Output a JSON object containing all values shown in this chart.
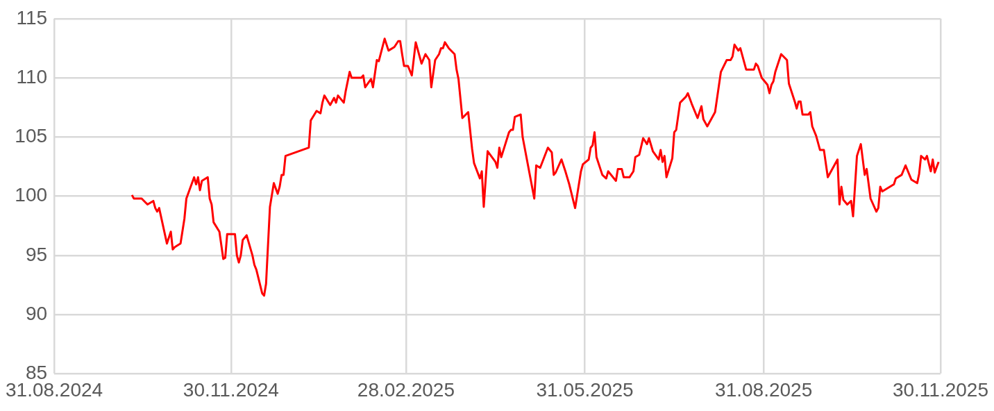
{
  "chart_data": {
    "type": "line",
    "x": [
      "2024-10-10",
      "2024-10-11",
      "2024-10-15",
      "2024-10-18",
      "2024-10-21",
      "2024-10-22",
      "2024-10-23",
      "2024-10-24",
      "2024-10-28",
      "2024-10-30",
      "2024-10-31",
      "2024-11-01",
      "2024-11-04",
      "2024-11-06",
      "2024-11-07",
      "2024-11-11",
      "2024-11-12",
      "2024-11-13",
      "2024-11-14",
      "2024-11-15",
      "2024-11-18",
      "2024-11-19",
      "2024-11-20",
      "2024-11-21",
      "2024-11-24",
      "2024-11-26",
      "2024-11-27",
      "2024-11-28",
      "2024-12-02",
      "2024-12-03",
      "2024-12-04",
      "2024-12-05",
      "2024-12-06",
      "2024-12-08",
      "2024-12-11",
      "2024-12-12",
      "2024-12-13",
      "2024-12-16",
      "2024-12-17",
      "2024-12-18",
      "2024-12-20",
      "2024-12-22",
      "2024-12-24",
      "2024-12-25",
      "2024-12-26",
      "2024-12-27",
      "2024-12-28",
      "2025-01-09",
      "2025-01-10",
      "2025-01-13",
      "2025-01-15",
      "2025-01-16",
      "2025-01-17",
      "2025-01-20",
      "2025-01-22",
      "2025-01-23",
      "2025-01-24",
      "2025-01-27",
      "2025-01-28",
      "2025-01-30",
      "2025-01-31",
      "2025-02-05",
      "2025-02-06",
      "2025-02-07",
      "2025-02-10",
      "2025-02-11",
      "2025-02-13",
      "2025-02-14",
      "2025-02-17",
      "2025-02-19",
      "2025-02-22",
      "2025-02-24",
      "2025-02-25",
      "2025-02-26",
      "2025-02-27",
      "2025-03-01",
      "2025-03-03",
      "2025-03-05",
      "2025-03-08",
      "2025-03-10",
      "2025-03-12",
      "2025-03-13",
      "2025-03-15",
      "2025-03-17",
      "2025-03-18",
      "2025-03-19",
      "2025-03-20",
      "2025-03-22",
      "2025-03-25",
      "2025-03-26",
      "2025-03-27",
      "2025-03-29",
      "2025-04-01",
      "2025-04-03",
      "2025-04-04",
      "2025-04-07",
      "2025-04-08",
      "2025-04-09",
      "2025-04-11",
      "2025-04-15",
      "2025-04-16",
      "2025-04-17",
      "2025-04-18",
      "2025-04-22",
      "2025-04-23",
      "2025-04-24",
      "2025-04-25",
      "2025-04-28",
      "2025-04-29",
      "2025-05-05",
      "2025-05-06",
      "2025-05-08",
      "2025-05-12",
      "2025-05-14",
      "2025-05-15",
      "2025-05-16",
      "2025-05-19",
      "2025-05-21",
      "2025-05-23",
      "2025-05-26",
      "2025-05-29",
      "2025-05-30",
      "2025-06-02",
      "2025-06-03",
      "2025-06-04",
      "2025-06-05",
      "2025-06-06",
      "2025-06-09",
      "2025-06-11",
      "2025-06-12",
      "2025-06-16",
      "2025-06-17",
      "2025-06-19",
      "2025-06-20",
      "2025-06-23",
      "2025-06-25",
      "2025-06-26",
      "2025-06-28",
      "2025-06-30",
      "2025-07-02",
      "2025-07-03",
      "2025-07-05",
      "2025-07-08",
      "2025-07-09",
      "2025-07-10",
      "2025-07-11",
      "2025-07-12",
      "2025-07-15",
      "2025-07-16",
      "2025-07-17",
      "2025-07-19",
      "2025-07-22",
      "2025-07-23",
      "2025-07-25",
      "2025-07-28",
      "2025-07-30",
      "2025-07-31",
      "2025-08-02",
      "2025-08-06",
      "2025-08-09",
      "2025-08-12",
      "2025-08-14",
      "2025-08-15",
      "2025-08-16",
      "2025-08-18",
      "2025-08-19",
      "2025-08-22",
      "2025-08-26",
      "2025-08-27",
      "2025-08-28",
      "2025-08-30",
      "2025-09-02",
      "2025-09-03",
      "2025-09-04",
      "2025-09-05",
      "2025-09-06",
      "2025-09-09",
      "2025-09-12",
      "2025-09-13",
      "2025-09-16",
      "2025-09-17",
      "2025-09-18",
      "2025-09-19",
      "2025-09-20",
      "2025-09-23",
      "2025-09-24",
      "2025-09-25",
      "2025-09-27",
      "2025-09-29",
      "2025-10-01",
      "2025-10-03",
      "2025-10-08",
      "2025-10-09",
      "2025-10-10",
      "2025-10-11",
      "2025-10-13",
      "2025-10-15",
      "2025-10-16",
      "2025-10-18",
      "2025-10-20",
      "2025-10-22",
      "2025-10-23",
      "2025-10-25",
      "2025-10-28",
      "2025-10-29",
      "2025-10-30",
      "2025-10-31",
      "2025-11-06",
      "2025-11-07",
      "2025-11-10",
      "2025-11-12",
      "2025-11-15",
      "2025-11-18",
      "2025-11-19",
      "2025-11-20",
      "2025-11-22",
      "2025-11-23",
      "2025-11-25",
      "2025-11-26",
      "2025-11-27",
      "2025-11-29"
    ],
    "series": [
      {
        "color": "#ff0000",
        "values": [
          100.1,
          99.8,
          99.8,
          99.3,
          99.6,
          99.0,
          98.7,
          99.0,
          96.0,
          97.0,
          95.5,
          95.7,
          96.0,
          98.1,
          99.8,
          101.6,
          101.0,
          101.6,
          100.5,
          101.3,
          101.6,
          99.8,
          99.3,
          97.8,
          97.0,
          94.7,
          94.8,
          96.8,
          96.8,
          95.0,
          94.4,
          95.0,
          96.3,
          96.7,
          95.0,
          94.2,
          93.8,
          91.8,
          91.6,
          92.6,
          99.1,
          101.1,
          100.2,
          100.8,
          101.8,
          101.8,
          103.4,
          104.1,
          106.4,
          107.2,
          107.0,
          107.9,
          108.5,
          107.7,
          108.3,
          107.9,
          108.5,
          107.9,
          108.9,
          110.5,
          110.0,
          110.0,
          110.2,
          109.2,
          109.9,
          109.2,
          111.5,
          111.4,
          113.3,
          112.3,
          112.6,
          113.1,
          113.1,
          112.0,
          111.0,
          111.0,
          110.2,
          113.0,
          111.2,
          112.0,
          111.5,
          109.2,
          111.5,
          112.0,
          112.5,
          112.5,
          113.0,
          112.5,
          112.0,
          110.7,
          109.9,
          106.6,
          107.1,
          104.0,
          102.8,
          101.5,
          102.1,
          99.1,
          103.8,
          102.9,
          102.4,
          104.1,
          103.3,
          105.4,
          105.6,
          105.6,
          106.7,
          106.9,
          105.0,
          99.8,
          102.6,
          102.4,
          104.1,
          103.7,
          101.8,
          102.0,
          103.1,
          102.1,
          101.0,
          99.0,
          102.1,
          102.7,
          103.1,
          104.1,
          104.3,
          105.4,
          103.3,
          101.8,
          101.5,
          102.1,
          101.3,
          102.3,
          102.3,
          101.6,
          101.6,
          102.1,
          103.3,
          103.5,
          104.9,
          104.4,
          104.9,
          103.8,
          103.1,
          103.9,
          102.9,
          103.4,
          101.6,
          103.2,
          105.4,
          105.6,
          107.9,
          108.4,
          108.7,
          107.8,
          106.6,
          107.6,
          106.5,
          105.9,
          107.1,
          110.5,
          111.5,
          111.5,
          111.8,
          112.8,
          112.3,
          112.5,
          110.7,
          110.7,
          111.2,
          111.0,
          110.0,
          109.4,
          108.7,
          109.4,
          109.7,
          110.5,
          112.0,
          111.5,
          109.5,
          108.0,
          107.4,
          108.0,
          108.0,
          106.9,
          106.9,
          107.1,
          105.9,
          105.1,
          103.9,
          103.9,
          101.6,
          103.1,
          99.3,
          100.8,
          99.7,
          99.3,
          99.6,
          98.3,
          103.4,
          104.4,
          101.8,
          102.3,
          99.8,
          98.7,
          99.0,
          100.8,
          100.4,
          101.0,
          101.5,
          101.8,
          102.6,
          101.4,
          101.1,
          101.9,
          103.4,
          103.1,
          103.4,
          102.1,
          103.1,
          102.0,
          102.9
        ]
      }
    ],
    "xlim": [
      "2024-08-31",
      "2025-11-30"
    ],
    "xticks": [
      {
        "value": "2024-08-31",
        "label": "31.08.2024"
      },
      {
        "value": "2024-11-30",
        "label": "30.11.2024"
      },
      {
        "value": "2025-02-28",
        "label": "28.02.2025"
      },
      {
        "value": "2025-05-31",
        "label": "31.05.2025"
      },
      {
        "value": "2025-08-31",
        "label": "31.08.2025"
      },
      {
        "value": "2025-11-30",
        "label": "30.11.2025"
      }
    ],
    "ylim": [
      85,
      115
    ],
    "yticks": [
      85,
      90,
      95,
      100,
      105,
      110,
      115
    ],
    "grid": true,
    "marker": "none"
  }
}
